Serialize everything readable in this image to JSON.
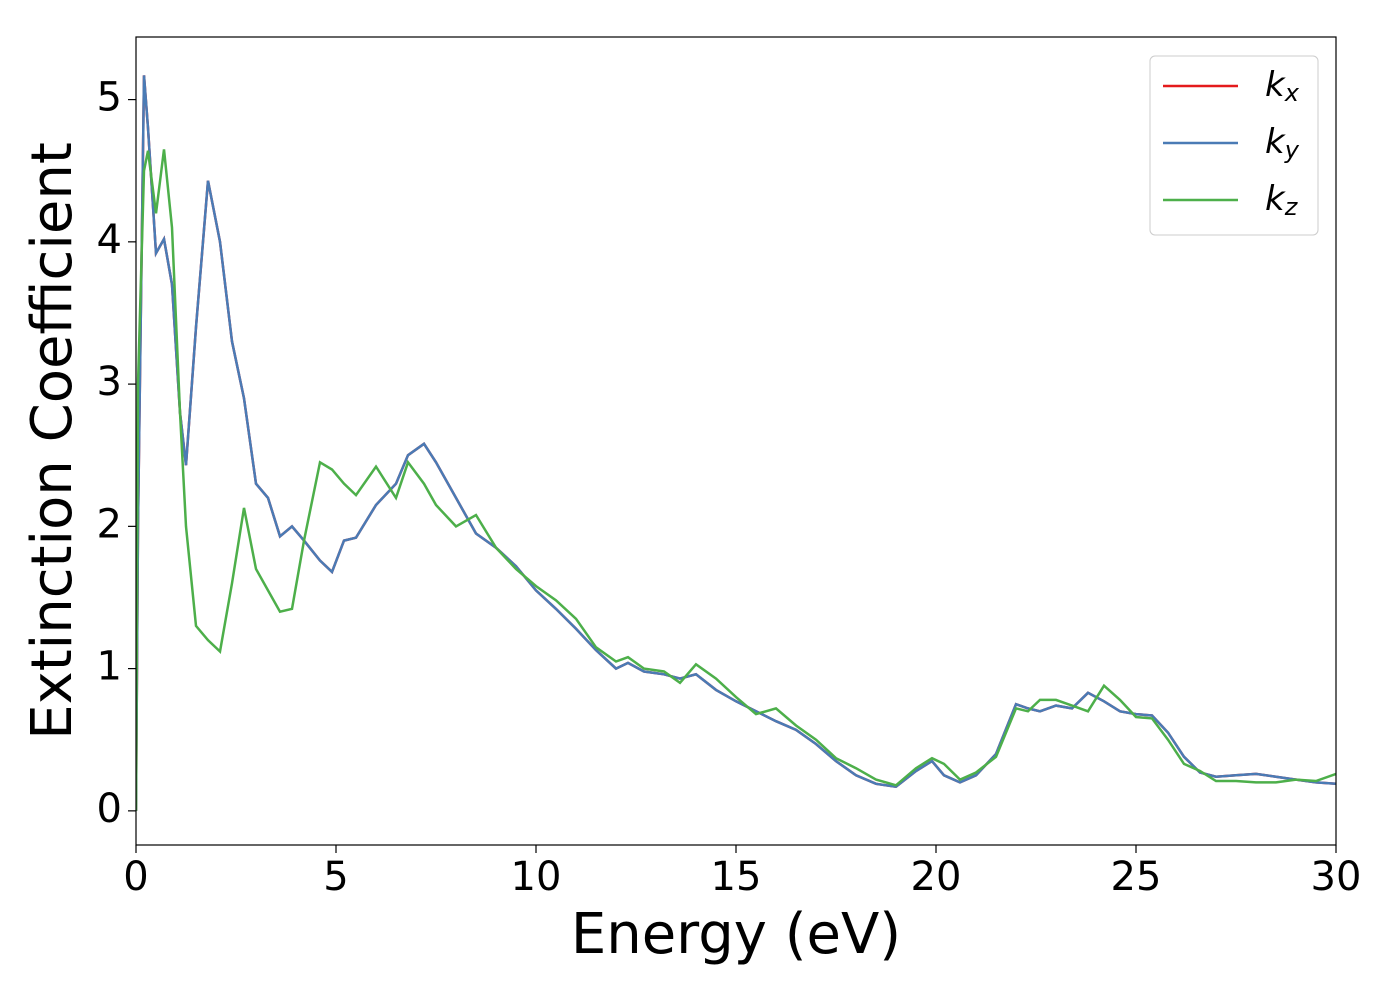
{
  "chart_data": {
    "type": "line",
    "x_label": "Energy (eV)",
    "y_label": "Extinction Coefficient",
    "x": [
      0,
      0.05,
      0.2,
      0.3,
      0.5,
      0.7,
      0.9,
      1.1,
      1.25,
      1.5,
      1.8,
      2.1,
      2.4,
      2.7,
      3.0,
      3.3,
      3.6,
      3.9,
      4.2,
      4.6,
      4.9,
      5.2,
      5.5,
      6.0,
      6.5,
      6.8,
      7.2,
      7.5,
      8.0,
      8.5,
      9.0,
      9.5,
      10.0,
      10.5,
      11.0,
      11.5,
      12.0,
      12.3,
      12.7,
      13.2,
      13.6,
      14.0,
      14.5,
      15.0,
      15.5,
      16.0,
      16.5,
      17.0,
      17.5,
      18.0,
      18.5,
      19.0,
      19.5,
      19.9,
      20.2,
      20.6,
      21.0,
      21.5,
      22.0,
      22.3,
      22.6,
      23.0,
      23.4,
      23.8,
      24.2,
      24.6,
      25.0,
      25.4,
      25.8,
      26.2,
      26.6,
      27.0,
      27.5,
      28.0,
      28.5,
      29.0,
      29.5,
      30.0
    ],
    "series": [
      {
        "name": "kx",
        "color": "#e41a1c",
        "values": [
          0,
          2.0,
          5.17,
          4.8,
          3.92,
          4.02,
          3.7,
          2.8,
          2.43,
          3.4,
          4.43,
          4.0,
          3.3,
          2.9,
          2.3,
          2.2,
          1.93,
          2.0,
          1.9,
          1.76,
          1.68,
          1.9,
          1.92,
          2.15,
          2.3,
          2.5,
          2.58,
          2.45,
          2.2,
          1.95,
          1.85,
          1.72,
          1.55,
          1.42,
          1.28,
          1.13,
          1.0,
          1.04,
          0.98,
          0.96,
          0.93,
          0.96,
          0.85,
          0.77,
          0.7,
          0.63,
          0.57,
          0.47,
          0.35,
          0.25,
          0.19,
          0.17,
          0.28,
          0.35,
          0.25,
          0.2,
          0.25,
          0.4,
          0.75,
          0.72,
          0.7,
          0.74,
          0.72,
          0.83,
          0.77,
          0.7,
          0.68,
          0.67,
          0.55,
          0.38,
          0.27,
          0.24,
          0.25,
          0.26,
          0.24,
          0.22,
          0.2,
          0.19
        ]
      },
      {
        "name": "ky",
        "color": "#4a7bb5",
        "values": [
          0,
          2.0,
          5.17,
          4.8,
          3.92,
          4.02,
          3.7,
          2.8,
          2.43,
          3.4,
          4.43,
          4.0,
          3.3,
          2.9,
          2.3,
          2.2,
          1.93,
          2.0,
          1.9,
          1.76,
          1.68,
          1.9,
          1.92,
          2.15,
          2.3,
          2.5,
          2.58,
          2.45,
          2.2,
          1.95,
          1.85,
          1.72,
          1.55,
          1.42,
          1.28,
          1.13,
          1.0,
          1.04,
          0.98,
          0.96,
          0.93,
          0.96,
          0.85,
          0.77,
          0.7,
          0.63,
          0.57,
          0.47,
          0.35,
          0.25,
          0.19,
          0.17,
          0.28,
          0.35,
          0.25,
          0.2,
          0.25,
          0.4,
          0.75,
          0.72,
          0.7,
          0.74,
          0.72,
          0.83,
          0.77,
          0.7,
          0.68,
          0.67,
          0.55,
          0.38,
          0.27,
          0.24,
          0.25,
          0.26,
          0.24,
          0.22,
          0.2,
          0.19
        ]
      },
      {
        "name": "kz",
        "color": "#4daf4a",
        "values": [
          0,
          3.0,
          4.5,
          4.64,
          4.2,
          4.65,
          4.1,
          2.8,
          2.0,
          1.3,
          1.2,
          1.12,
          1.6,
          2.13,
          1.7,
          1.55,
          1.4,
          1.42,
          1.9,
          2.45,
          2.4,
          2.3,
          2.22,
          2.42,
          2.2,
          2.45,
          2.3,
          2.15,
          2.0,
          2.08,
          1.85,
          1.7,
          1.58,
          1.48,
          1.35,
          1.15,
          1.05,
          1.08,
          1.0,
          0.98,
          0.9,
          1.03,
          0.93,
          0.8,
          0.68,
          0.72,
          0.6,
          0.5,
          0.37,
          0.3,
          0.22,
          0.18,
          0.3,
          0.37,
          0.33,
          0.22,
          0.27,
          0.38,
          0.72,
          0.7,
          0.78,
          0.78,
          0.74,
          0.7,
          0.88,
          0.78,
          0.66,
          0.65,
          0.5,
          0.33,
          0.28,
          0.21,
          0.21,
          0.2,
          0.2,
          0.22,
          0.21,
          0.26
        ]
      }
    ],
    "xlim": [
      0,
      30
    ],
    "xticks": [
      0,
      5,
      10,
      15,
      20,
      25,
      30
    ],
    "ylim": [
      -0.24,
      5.44
    ],
    "yticks": [
      0,
      1,
      2,
      3,
      4,
      5
    ],
    "grid": false,
    "legend": "upper right"
  }
}
